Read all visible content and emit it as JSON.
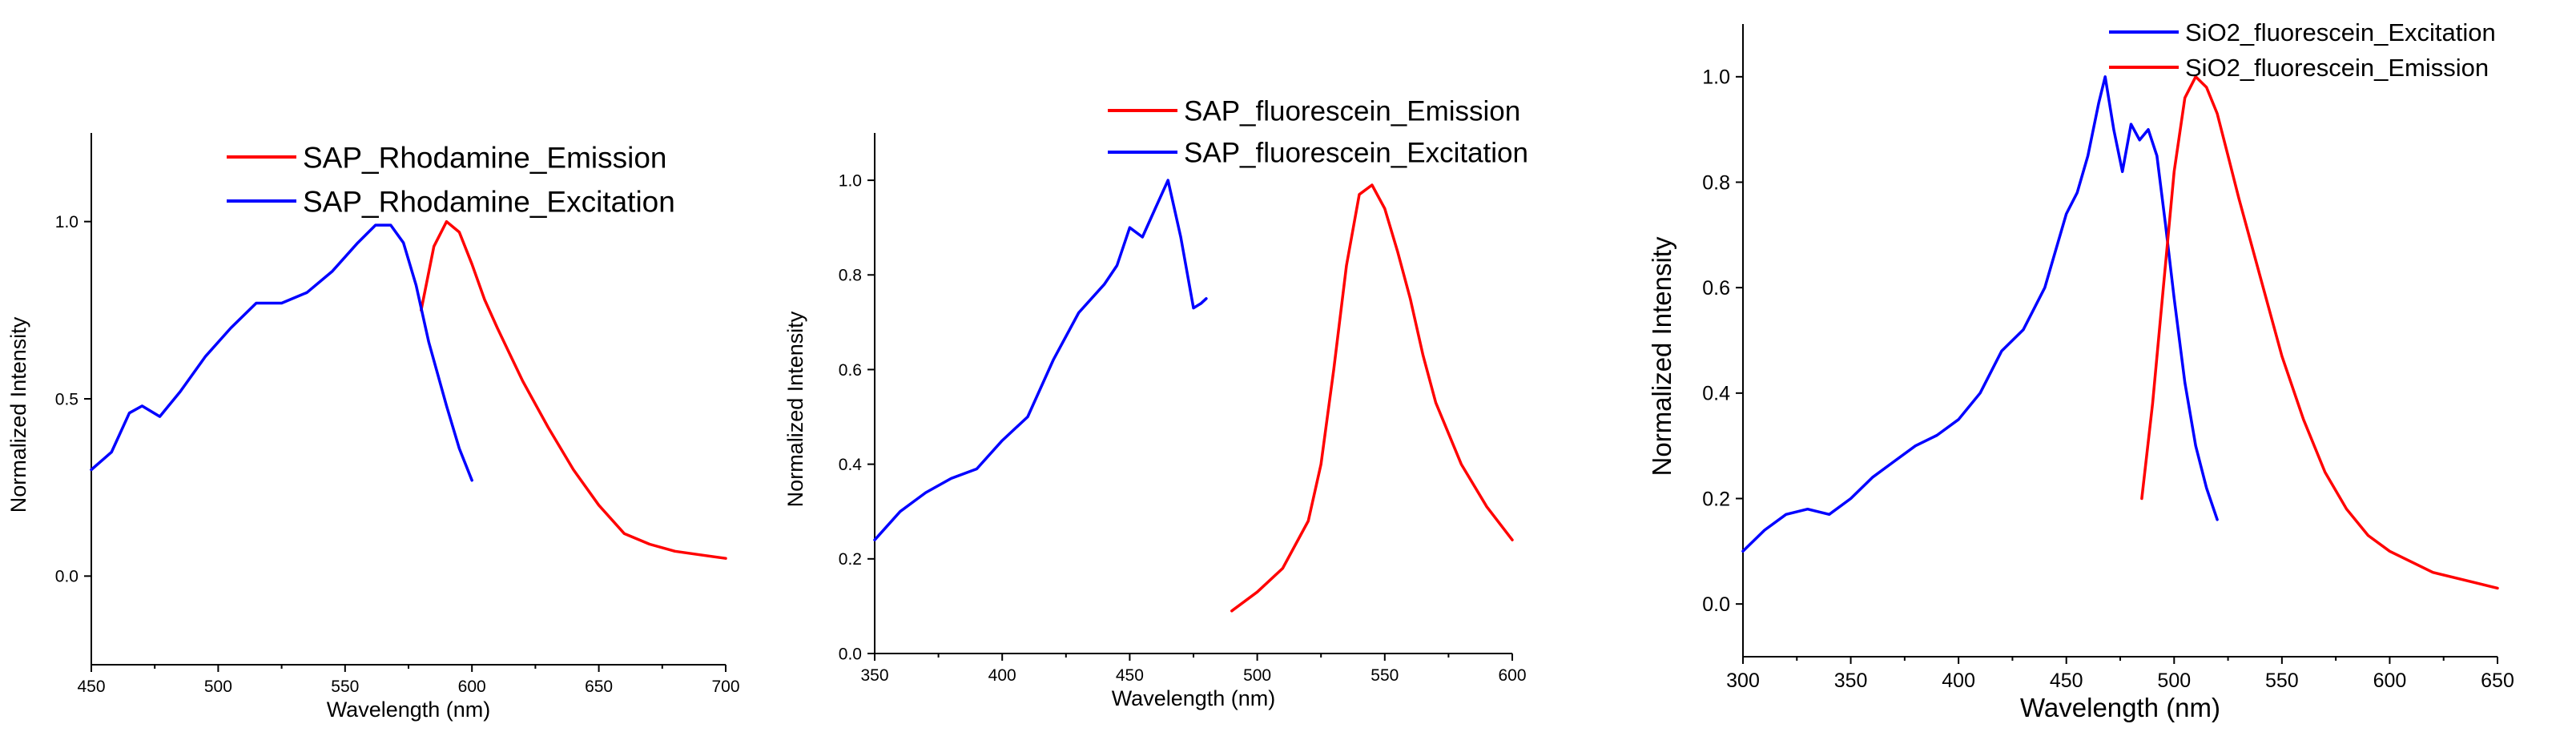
{
  "colors": {
    "red": "#ff0000",
    "blue": "#0000ff"
  },
  "chart_data": [
    {
      "type": "line",
      "title": "",
      "xlabel": "Wavelength (nm)",
      "ylabel": "Normalized Intensity",
      "xlim": [
        450,
        700
      ],
      "ylim": [
        -0.25,
        1.25
      ],
      "xticks": [
        450,
        500,
        550,
        600,
        650,
        700
      ],
      "xtick_labels": [
        "450",
        "500",
        "550",
        "600",
        "650",
        "700"
      ],
      "yticks": [
        0.0,
        0.5,
        1.0
      ],
      "ytick_labels": [
        "0.0",
        "0.5",
        "1.0"
      ],
      "legend_position": "top-right",
      "series": [
        {
          "name": "SAP_Rhodamine_Emission",
          "color": "red",
          "x": [
            580,
            585,
            590,
            595,
            600,
            605,
            610,
            620,
            630,
            640,
            650,
            660,
            670,
            680,
            690,
            700
          ],
          "y": [
            0.75,
            0.93,
            1.0,
            0.97,
            0.88,
            0.78,
            0.7,
            0.55,
            0.42,
            0.3,
            0.2,
            0.12,
            0.09,
            0.07,
            0.06,
            0.05
          ]
        },
        {
          "name": "SAP_Rhodamine_Excitation",
          "color": "blue",
          "x": [
            450,
            458,
            465,
            470,
            477,
            485,
            495,
            505,
            515,
            525,
            535,
            545,
            555,
            562,
            568,
            573,
            578,
            583,
            590,
            595,
            600
          ],
          "y": [
            0.3,
            0.35,
            0.46,
            0.48,
            0.45,
            0.52,
            0.62,
            0.7,
            0.77,
            0.77,
            0.8,
            0.86,
            0.94,
            0.99,
            0.99,
            0.94,
            0.82,
            0.66,
            0.48,
            0.36,
            0.27
          ]
        }
      ]
    },
    {
      "type": "line",
      "title": "",
      "xlabel": "Wavelength (nm)",
      "ylabel": "Normalized Intensity",
      "xlim": [
        350,
        600
      ],
      "ylim": [
        0.0,
        1.1
      ],
      "xticks": [
        350,
        400,
        450,
        500,
        550,
        600
      ],
      "xtick_labels": [
        "350",
        "400",
        "450",
        "500",
        "550",
        "600"
      ],
      "yticks": [
        0.0,
        0.2,
        0.4,
        0.6,
        0.8,
        1.0
      ],
      "ytick_labels": [
        "0.0",
        "0.2",
        "0.4",
        "0.6",
        "0.8",
        "1.0"
      ],
      "legend_position": "top-right",
      "series": [
        {
          "name": "SAP_fluorescein_Emission",
          "color": "red",
          "x": [
            490,
            500,
            510,
            520,
            525,
            530,
            535,
            540,
            545,
            550,
            555,
            560,
            565,
            570,
            580,
            590,
            600
          ],
          "y": [
            0.09,
            0.13,
            0.18,
            0.28,
            0.4,
            0.6,
            0.82,
            0.97,
            0.99,
            0.94,
            0.85,
            0.75,
            0.63,
            0.53,
            0.4,
            0.31,
            0.24
          ]
        },
        {
          "name": "SAP_fluorescein_Excitation",
          "color": "blue",
          "x": [
            350,
            360,
            370,
            380,
            390,
            400,
            410,
            420,
            430,
            440,
            445,
            450,
            455,
            460,
            465,
            470,
            475,
            478,
            480
          ],
          "y": [
            0.24,
            0.3,
            0.34,
            0.37,
            0.39,
            0.45,
            0.5,
            0.62,
            0.72,
            0.78,
            0.82,
            0.9,
            0.88,
            0.94,
            1.0,
            0.88,
            0.73,
            0.74,
            0.75
          ]
        }
      ]
    },
    {
      "type": "line",
      "title": "",
      "xlabel": "Wavelength (nm)",
      "ylabel": "Normalized Intensity",
      "xlim": [
        300,
        650
      ],
      "ylim": [
        -0.1,
        1.1
      ],
      "xticks": [
        300,
        350,
        400,
        450,
        500,
        550,
        600,
        650
      ],
      "xtick_labels": [
        "300",
        "350",
        "400",
        "450",
        "500",
        "550",
        "600",
        "650"
      ],
      "yticks": [
        0.0,
        0.2,
        0.4,
        0.6,
        0.8,
        1.0
      ],
      "ytick_labels": [
        "0.0",
        "0.2",
        "0.4",
        "0.6",
        "0.8",
        "1.0"
      ],
      "legend_position": "top-right",
      "series": [
        {
          "name": "SiO2_fluorescein_Excitation",
          "color": "blue",
          "x": [
            300,
            310,
            320,
            330,
            340,
            350,
            360,
            370,
            380,
            390,
            400,
            410,
            420,
            430,
            440,
            450,
            455,
            460,
            465,
            468,
            472,
            476,
            480,
            484,
            488,
            492,
            496,
            500,
            505,
            510,
            515,
            520
          ],
          "y": [
            0.1,
            0.14,
            0.17,
            0.18,
            0.17,
            0.2,
            0.24,
            0.27,
            0.3,
            0.32,
            0.35,
            0.4,
            0.48,
            0.52,
            0.6,
            0.74,
            0.78,
            0.85,
            0.95,
            1.0,
            0.9,
            0.82,
            0.91,
            0.88,
            0.9,
            0.85,
            0.72,
            0.58,
            0.42,
            0.3,
            0.22,
            0.16
          ]
        },
        {
          "name": "SiO2_fluorescein_Emission",
          "color": "red",
          "x": [
            485,
            490,
            495,
            500,
            505,
            510,
            515,
            520,
            525,
            530,
            540,
            550,
            560,
            570,
            580,
            590,
            600,
            620,
            640,
            650
          ],
          "y": [
            0.2,
            0.38,
            0.6,
            0.82,
            0.96,
            1.0,
            0.98,
            0.93,
            0.85,
            0.77,
            0.62,
            0.47,
            0.35,
            0.25,
            0.18,
            0.13,
            0.1,
            0.06,
            0.04,
            0.03
          ]
        }
      ]
    }
  ]
}
